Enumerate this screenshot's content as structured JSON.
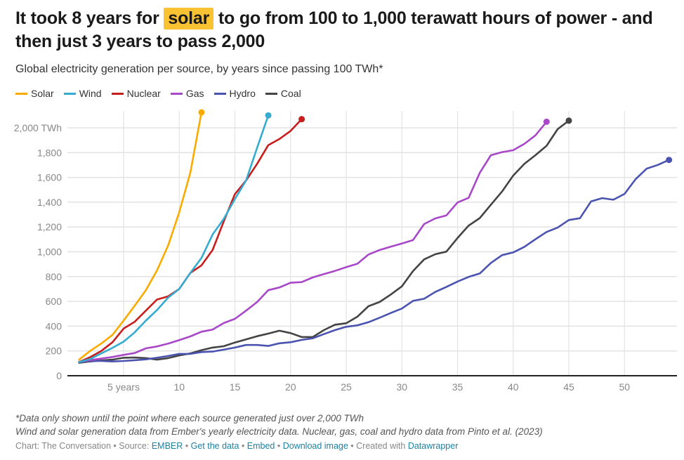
{
  "header": {
    "title_pre": "It took 8 years for ",
    "title_highlight": "solar",
    "title_post": " to go from 100 to 1,000 terawatt hours of power - and then just 3 years to pass 2,000",
    "highlight_color": "#f9c233",
    "subtitle": "Global electricity generation per source, by years since passing 100 TWh*"
  },
  "legend": [
    {
      "label": "Solar",
      "color": "#fbab00"
    },
    {
      "label": "Wind",
      "color": "#35acd0"
    },
    {
      "label": "Nuclear",
      "color": "#c71e1d"
    },
    {
      "label": "Gas",
      "color": "#a848c8"
    },
    {
      "label": "Hydro",
      "color": "#4a54b0"
    },
    {
      "label": "Coal",
      "color": "#444444"
    }
  ],
  "notes": {
    "line1": "*Data only shown until the point where each source generated just over 2,000 TWh",
    "line2": "Wind and solar generation data from Ember's yearly electricity data. Nuclear, gas, coal and hydro data from Pinto et al. (2023)"
  },
  "footer": {
    "chart_by": "Chart: The Conversation",
    "sep": " • ",
    "source_label": "Source: ",
    "source_link": "EMBER",
    "get_data": "Get the data",
    "embed": "Embed",
    "download": "Download image",
    "created_with": "Created with ",
    "datawrapper": "Datawrapper"
  },
  "chart_data": {
    "type": "line",
    "title": "It took 8 years for solar to go from 100 to 1,000 terawatt hours of power - and then just 3 years to pass 2,000",
    "subtitle": "Global electricity generation per source, by years since passing 100 TWh*",
    "xlabel": "years since passing 100 TWh",
    "ylabel": "TWh",
    "xlim": [
      1,
      54
    ],
    "ylim": [
      0,
      2000
    ],
    "grid": true,
    "legend_position": "top-left",
    "x_ticks": [
      {
        "value": 5,
        "label": "5 years"
      },
      {
        "value": 10,
        "label": "10"
      },
      {
        "value": 15,
        "label": "15"
      },
      {
        "value": 20,
        "label": "20"
      },
      {
        "value": 25,
        "label": "25"
      },
      {
        "value": 30,
        "label": "30"
      },
      {
        "value": 35,
        "label": "35"
      },
      {
        "value": 40,
        "label": "40"
      },
      {
        "value": 45,
        "label": "45"
      },
      {
        "value": 50,
        "label": "50"
      }
    ],
    "y_ticks": [
      {
        "value": 0,
        "label": "0"
      },
      {
        "value": 200,
        "label": "200"
      },
      {
        "value": 400,
        "label": "400"
      },
      {
        "value": 600,
        "label": "600"
      },
      {
        "value": 800,
        "label": "800"
      },
      {
        "value": 1000,
        "label": "1,000"
      },
      {
        "value": 1200,
        "label": "1,200"
      },
      {
        "value": 1400,
        "label": "1,400"
      },
      {
        "value": 1600,
        "label": "1,600"
      },
      {
        "value": 1800,
        "label": "1,800"
      },
      {
        "value": 2000,
        "label": "2,000 TWh"
      }
    ],
    "series": [
      {
        "name": "Solar",
        "color": "#fbab00",
        "start_year": 1,
        "values": [
          130,
          200,
          260,
          330,
          445,
          565,
          690,
          850,
          1050,
          1320,
          1640,
          2125
        ]
      },
      {
        "name": "Wind",
        "color": "#35acd0",
        "start_year": 1,
        "values": [
          110,
          135,
          180,
          225,
          275,
          350,
          445,
          530,
          630,
          700,
          830,
          950,
          1140,
          1265,
          1425,
          1575,
          1840,
          2100
        ]
      },
      {
        "name": "Nuclear",
        "color": "#c71e1d",
        "start_year": 1,
        "values": [
          110,
          150,
          200,
          270,
          380,
          435,
          525,
          615,
          640,
          700,
          830,
          890,
          1015,
          1245,
          1465,
          1575,
          1710,
          1860,
          1910,
          1975,
          2070
        ]
      },
      {
        "name": "Gas",
        "color": "#a848c8",
        "start_year": 1,
        "values": [
          113,
          126,
          138,
          151,
          168,
          183,
          221,
          236,
          259,
          287,
          317,
          355,
          372,
          425,
          459,
          525,
          595,
          690,
          712,
          750,
          755,
          793,
          820,
          846,
          876,
          903,
          978,
          1014,
          1041,
          1067,
          1094,
          1224,
          1269,
          1293,
          1398,
          1435,
          1637,
          1779,
          1804,
          1819,
          1870,
          1939,
          2049
        ]
      },
      {
        "name": "Hydro",
        "color": "#4a54b0",
        "start_year": 1,
        "values": [
          110,
          119,
          119,
          115,
          119,
          125,
          132,
          145,
          159,
          176,
          176,
          191,
          195,
          210,
          227,
          248,
          248,
          240,
          262,
          270,
          289,
          302,
          336,
          368,
          395,
          406,
          432,
          468,
          506,
          542,
          604,
          621,
          676,
          716,
          760,
          797,
          825,
          910,
          973,
          995,
          1039,
          1101,
          1160,
          1195,
          1256,
          1271,
          1407,
          1433,
          1420,
          1467,
          1586,
          1671,
          1701,
          1741
        ]
      },
      {
        "name": "Coal",
        "color": "#444444",
        "start_year": 1,
        "values": [
          104,
          115,
          123,
          130,
          145,
          147,
          142,
          130,
          142,
          164,
          180,
          206,
          227,
          238,
          268,
          293,
          319,
          340,
          363,
          344,
          312,
          312,
          368,
          412,
          423,
          476,
          561,
          595,
          655,
          721,
          844,
          939,
          980,
          1001,
          1111,
          1211,
          1272,
          1379,
          1486,
          1615,
          1709,
          1779,
          1855,
          1989,
          2058
        ]
      }
    ],
    "annotations": [
      "*Data only shown until the point where each source generated just over 2,000 TWh"
    ]
  }
}
